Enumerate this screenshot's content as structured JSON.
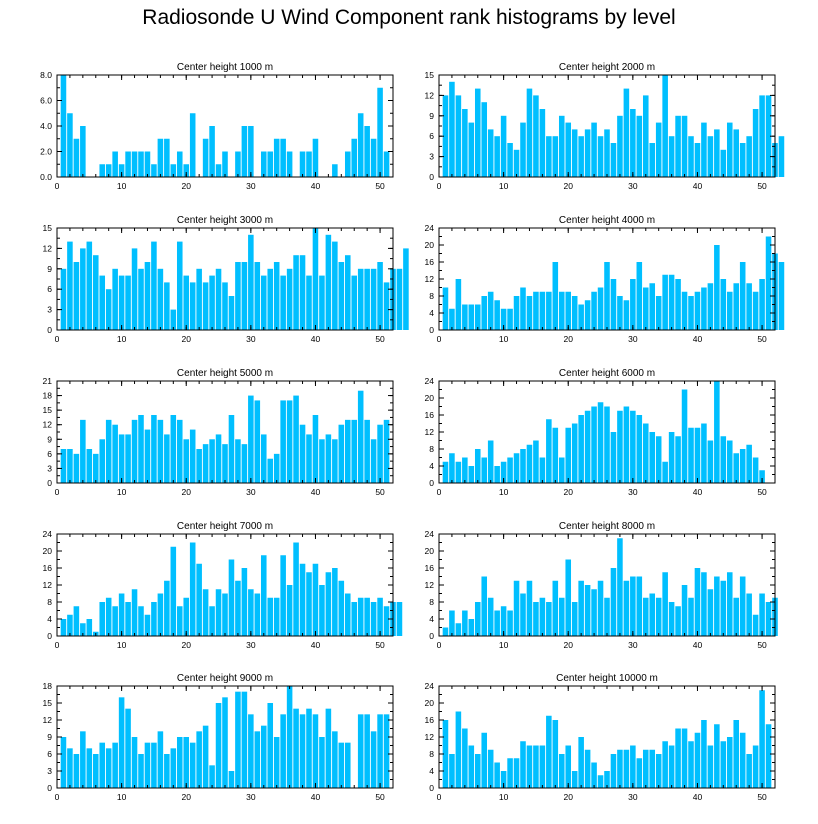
{
  "title": "Radiosonde U Wind Component rank histograms by level",
  "colors": {
    "bar": "#00bfff",
    "frame": "#000000"
  },
  "chart_data": [
    {
      "type": "bar",
      "title": "Center height 1000 m",
      "xlim": [
        0,
        52
      ],
      "ylim": [
        0,
        8
      ],
      "yticks": [
        "0.0",
        "2.0",
        "4.0",
        "6.0",
        "8.0"
      ],
      "yticks_values": [
        0,
        2,
        4,
        6,
        8
      ],
      "xticks": [
        "0",
        "10",
        "20",
        "30",
        "40",
        "50"
      ],
      "values": [
        8,
        5,
        3,
        4,
        0,
        0,
        1,
        1,
        2,
        1,
        2,
        2,
        2,
        2,
        1,
        3,
        3,
        1,
        2,
        1,
        5,
        0,
        3,
        4,
        1,
        2,
        0,
        2,
        4,
        4,
        0,
        2,
        2,
        3,
        3,
        2,
        0,
        2,
        2,
        3,
        0,
        0,
        1,
        0,
        2,
        3,
        5,
        4,
        3,
        7,
        2
      ]
    },
    {
      "type": "bar",
      "title": "Center height 2000 m",
      "xlim": [
        0,
        52
      ],
      "ylim": [
        0,
        15
      ],
      "yticks": [
        "0",
        "3",
        "6",
        "9",
        "12",
        "15"
      ],
      "yticks_values": [
        0,
        3,
        6,
        9,
        12,
        15
      ],
      "xticks": [
        "0",
        "10",
        "20",
        "30",
        "40",
        "50"
      ],
      "values": [
        12,
        14,
        12,
        10,
        8,
        13,
        11,
        7,
        6,
        9,
        5,
        4,
        8,
        13,
        12,
        10,
        6,
        6,
        9,
        8,
        7,
        6,
        7,
        8,
        6,
        7,
        5,
        9,
        13,
        10,
        9,
        12,
        5,
        8,
        15,
        6,
        9,
        9,
        6,
        5,
        8,
        6,
        7,
        4,
        8,
        7,
        5,
        6,
        10,
        12,
        12,
        5,
        6
      ]
    },
    {
      "type": "bar",
      "title": "Center height 3000 m",
      "xlim": [
        0,
        52
      ],
      "ylim": [
        0,
        15
      ],
      "yticks": [
        "0",
        "3",
        "6",
        "9",
        "12",
        "15"
      ],
      "yticks_values": [
        0,
        3,
        6,
        9,
        12,
        15
      ],
      "xticks": [
        "0",
        "10",
        "20",
        "30",
        "40",
        "50"
      ],
      "values": [
        9,
        13,
        10,
        12,
        13,
        11,
        8,
        6,
        9,
        8,
        8,
        12,
        9,
        10,
        13,
        9,
        7,
        3,
        13,
        8,
        7,
        9,
        7,
        8,
        9,
        7,
        5,
        10,
        10,
        14,
        10,
        8,
        9,
        10,
        8,
        9,
        11,
        11,
        8,
        15,
        8,
        14,
        13,
        10,
        11,
        8,
        9,
        9,
        9,
        10,
        7,
        9,
        9,
        12
      ]
    },
    {
      "type": "bar",
      "title": "Center height 4000 m",
      "xlim": [
        0,
        52
      ],
      "ylim": [
        0,
        24
      ],
      "yticks": [
        "0",
        "4",
        "8",
        "12",
        "16",
        "20",
        "24"
      ],
      "yticks_values": [
        0,
        4,
        8,
        12,
        16,
        20,
        24
      ],
      "xticks": [
        "0",
        "10",
        "20",
        "30",
        "40",
        "50"
      ],
      "values": [
        10,
        5,
        12,
        6,
        6,
        6,
        8,
        9,
        7,
        5,
        5,
        8,
        10,
        8,
        9,
        9,
        9,
        16,
        9,
        9,
        8,
        6,
        7,
        9,
        10,
        16,
        12,
        8,
        7,
        12,
        16,
        10,
        11,
        8,
        13,
        13,
        12,
        9,
        8,
        9,
        10,
        11,
        20,
        12,
        9,
        11,
        16,
        11,
        9,
        12,
        22,
        18,
        16
      ]
    },
    {
      "type": "bar",
      "title": "Center height 5000 m",
      "xlim": [
        0,
        52
      ],
      "ylim": [
        0,
        21
      ],
      "yticks": [
        "0",
        "3",
        "6",
        "9",
        "12",
        "15",
        "18",
        "21"
      ],
      "yticks_values": [
        0,
        3,
        6,
        9,
        12,
        15,
        18,
        21
      ],
      "xticks": [
        "0",
        "10",
        "20",
        "30",
        "40",
        "50"
      ],
      "values": [
        7,
        7,
        6,
        13,
        7,
        6,
        9,
        13,
        12,
        10,
        10,
        13,
        14,
        11,
        14,
        13,
        10,
        14,
        13,
        9,
        11,
        7,
        8,
        9,
        10,
        8,
        14,
        9,
        8,
        18,
        17,
        10,
        5,
        6,
        17,
        17,
        18,
        12,
        10,
        14,
        9,
        10,
        9,
        12,
        13,
        13,
        19,
        13,
        9,
        12,
        13
      ]
    },
    {
      "type": "bar",
      "title": "Center height 6000 m",
      "xlim": [
        0,
        52
      ],
      "ylim": [
        0,
        24
      ],
      "yticks": [
        "0",
        "4",
        "8",
        "12",
        "16",
        "20",
        "24"
      ],
      "yticks_values": [
        0,
        4,
        8,
        12,
        16,
        20,
        24
      ],
      "xticks": [
        "0",
        "10",
        "20",
        "30",
        "40",
        "50"
      ],
      "values": [
        5,
        7,
        5,
        6,
        4,
        8,
        6,
        10,
        4,
        5,
        6,
        7,
        8,
        9,
        10,
        6,
        15,
        13,
        6,
        13,
        14,
        16,
        17,
        18,
        19,
        18,
        12,
        17,
        18,
        17,
        16,
        14,
        12,
        11,
        5,
        12,
        11,
        22,
        13,
        13,
        14,
        10,
        24,
        11,
        10,
        7,
        8,
        9,
        6,
        3
      ]
    },
    {
      "type": "bar",
      "title": "Center height 7000 m",
      "xlim": [
        0,
        52
      ],
      "ylim": [
        0,
        24
      ],
      "yticks": [
        "0",
        "4",
        "8",
        "12",
        "16",
        "20",
        "24"
      ],
      "yticks_values": [
        0,
        4,
        8,
        12,
        16,
        20,
        24
      ],
      "xticks": [
        "0",
        "10",
        "20",
        "30",
        "40",
        "50"
      ],
      "values": [
        4,
        5,
        7,
        3,
        4,
        1,
        8,
        9,
        7,
        10,
        8,
        11,
        7,
        5,
        8,
        10,
        13,
        21,
        7,
        9,
        22,
        17,
        11,
        7,
        11,
        10,
        18,
        13,
        16,
        11,
        10,
        19,
        9,
        9,
        19,
        12,
        22,
        17,
        15,
        17,
        12,
        15,
        16,
        13,
        10,
        8,
        9,
        9,
        8,
        9,
        7,
        8,
        8
      ]
    },
    {
      "type": "bar",
      "title": "Center height 8000 m",
      "xlim": [
        0,
        52
      ],
      "ylim": [
        0,
        24
      ],
      "yticks": [
        "0",
        "4",
        "8",
        "12",
        "16",
        "20",
        "24"
      ],
      "yticks_values": [
        0,
        4,
        8,
        12,
        16,
        20,
        24
      ],
      "xticks": [
        "0",
        "10",
        "20",
        "30",
        "40",
        "50"
      ],
      "values": [
        2,
        6,
        3,
        6,
        4,
        8,
        14,
        9,
        6,
        7,
        6,
        13,
        10,
        13,
        8,
        9,
        8,
        13,
        9,
        18,
        8,
        13,
        12,
        11,
        13,
        9,
        16,
        23,
        13,
        14,
        14,
        9,
        10,
        9,
        15,
        8,
        7,
        12,
        9,
        16,
        15,
        11,
        14,
        13,
        15,
        9,
        14,
        10,
        5,
        10,
        8,
        9
      ]
    },
    {
      "type": "bar",
      "title": "Center height 9000 m",
      "xlim": [
        0,
        52
      ],
      "ylim": [
        0,
        18
      ],
      "yticks": [
        "0",
        "3",
        "6",
        "9",
        "12",
        "15",
        "18"
      ],
      "yticks_values": [
        0,
        3,
        6,
        9,
        12,
        15,
        18
      ],
      "xticks": [
        "0",
        "10",
        "20",
        "30",
        "40",
        "50"
      ],
      "values": [
        9,
        7,
        6,
        10,
        7,
        6,
        8,
        7,
        8,
        16,
        14,
        9,
        6,
        8,
        8,
        10,
        6,
        7,
        9,
        9,
        8,
        10,
        11,
        4,
        15,
        16,
        3,
        17,
        17,
        13,
        10,
        11,
        15,
        9,
        13,
        18,
        14,
        13,
        14,
        13,
        9,
        14,
        10,
        8,
        8,
        0,
        13,
        13,
        10,
        13,
        13
      ]
    },
    {
      "type": "bar",
      "title": "Center height 10000 m",
      "xlim": [
        0,
        52
      ],
      "ylim": [
        0,
        24
      ],
      "yticks": [
        "0",
        "4",
        "8",
        "12",
        "16",
        "20",
        "24"
      ],
      "yticks_values": [
        0,
        4,
        8,
        12,
        16,
        20,
        24
      ],
      "xticks": [
        "0",
        "10",
        "20",
        "30",
        "40",
        "50"
      ],
      "values": [
        16,
        8,
        18,
        14,
        10,
        8,
        13,
        9,
        6,
        4,
        7,
        7,
        11,
        10,
        10,
        10,
        17,
        16,
        8,
        10,
        4,
        12,
        9,
        6,
        3,
        4,
        8,
        9,
        9,
        10,
        7,
        9,
        9,
        8,
        11,
        10,
        14,
        14,
        11,
        13,
        16,
        10,
        15,
        11,
        12,
        16,
        13,
        8,
        10,
        23,
        15
      ]
    }
  ]
}
